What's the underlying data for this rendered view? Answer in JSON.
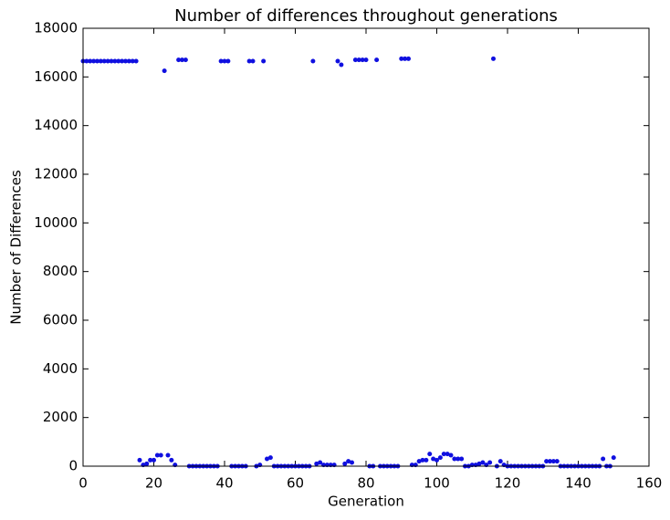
{
  "chart_data": {
    "type": "scatter",
    "title": "Number of differences throughout generations",
    "x_label": "Generation",
    "y_label": "Number of Differences",
    "x": [
      0,
      1,
      2,
      3,
      4,
      5,
      6,
      7,
      8,
      9,
      10,
      11,
      12,
      13,
      14,
      15,
      16,
      17,
      18,
      19,
      20,
      21,
      22,
      23,
      24,
      25,
      26,
      27,
      28,
      29,
      30,
      31,
      32,
      33,
      34,
      35,
      36,
      37,
      38,
      39,
      40,
      41,
      42,
      43,
      44,
      45,
      46,
      47,
      48,
      49,
      50,
      51,
      52,
      53,
      54,
      55,
      56,
      57,
      58,
      59,
      60,
      61,
      62,
      63,
      64,
      65,
      66,
      67,
      68,
      69,
      70,
      71,
      72,
      73,
      74,
      75,
      76,
      77,
      78,
      79,
      80,
      81,
      82,
      83,
      84,
      85,
      86,
      87,
      88,
      89,
      90,
      91,
      92,
      93,
      94,
      95,
      96,
      97,
      98,
      99,
      100,
      101,
      102,
      103,
      104,
      105,
      106,
      107,
      108,
      109,
      110,
      111,
      112,
      113,
      114,
      115,
      116,
      117,
      118,
      119,
      120,
      121,
      122,
      123,
      124,
      125,
      126,
      127,
      128,
      129,
      130,
      131,
      132,
      133,
      134,
      135,
      136,
      137,
      138,
      139,
      140,
      141,
      142,
      143,
      144,
      145,
      146,
      147,
      148,
      149,
      150
    ],
    "series": [
      {
        "name": "differences",
        "color": "#1010e0",
        "values": [
          16650,
          16650,
          16650,
          16650,
          16650,
          16650,
          16650,
          16650,
          16650,
          16650,
          16650,
          16650,
          16650,
          16650,
          16650,
          16650,
          250,
          50,
          100,
          250,
          250,
          450,
          450,
          16250,
          450,
          250,
          50,
          16700,
          16700,
          16700,
          0,
          0,
          0,
          0,
          0,
          0,
          0,
          0,
          0,
          16650,
          16650,
          16650,
          0,
          0,
          0,
          0,
          0,
          16650,
          16650,
          0,
          50,
          16650,
          300,
          350,
          0,
          0,
          0,
          0,
          0,
          0,
          0,
          0,
          0,
          0,
          0,
          16650,
          100,
          150,
          50,
          50,
          50,
          50,
          16650,
          16500,
          100,
          200,
          150,
          16700,
          16700,
          16700,
          16700,
          0,
          0,
          16700,
          0,
          0,
          0,
          0,
          0,
          0,
          16750,
          16750,
          16750,
          50,
          50,
          200,
          250,
          250,
          500,
          300,
          250,
          350,
          500,
          500,
          450,
          300,
          300,
          300,
          0,
          0,
          50,
          50,
          100,
          150,
          50,
          150,
          16750,
          0,
          200,
          50,
          0,
          0,
          0,
          0,
          0,
          0,
          0,
          0,
          0,
          0,
          0,
          200,
          200,
          200,
          200,
          0,
          0,
          0,
          0,
          0,
          0,
          0,
          0,
          0,
          0,
          0,
          0,
          300,
          0,
          0,
          350
        ]
      }
    ],
    "xlim": [
      0,
      160
    ],
    "xticks": [
      0,
      20,
      40,
      60,
      80,
      100,
      120,
      140,
      160
    ],
    "ylim": [
      0,
      18000
    ],
    "yticks": [
      0,
      2000,
      4000,
      6000,
      8000,
      10000,
      12000,
      14000,
      16000,
      18000
    ]
  }
}
